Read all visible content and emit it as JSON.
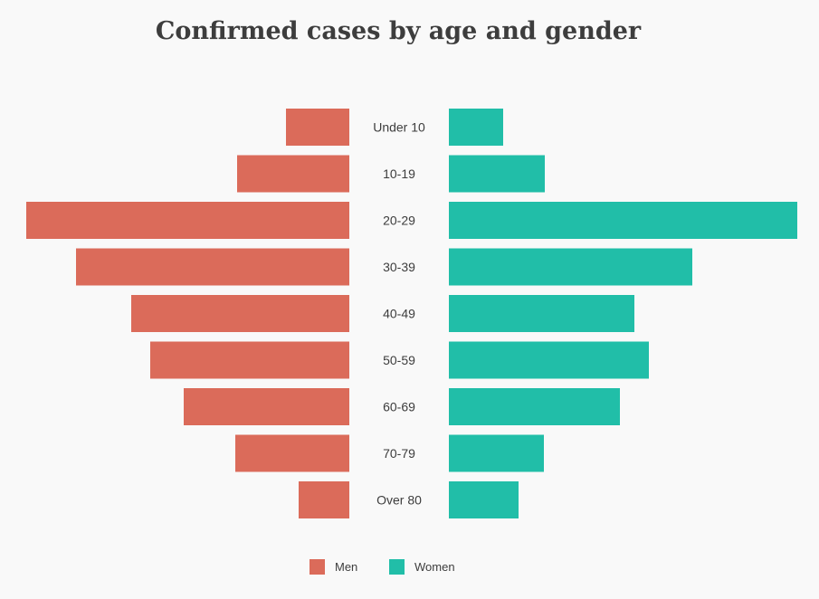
{
  "chart_data": {
    "type": "bar",
    "orientation": "horizontal",
    "layout": "population-pyramid",
    "title": "Confirmed cases by age and gender",
    "categories": [
      "Under 10",
      "10-19",
      "20-29",
      "30-39",
      "40-49",
      "50-59",
      "60-69",
      "70-79",
      "Over 80"
    ],
    "series": [
      {
        "name": "Men",
        "side": "left",
        "color": "#db6b5a",
        "values": [
          70,
          124,
          357,
          302,
          241,
          220,
          183,
          126,
          56
        ]
      },
      {
        "name": "Women",
        "side": "right",
        "color": "#21bea8",
        "values": [
          60,
          106,
          385,
          269,
          205,
          221,
          189,
          105,
          77
        ]
      }
    ],
    "xlim": [
      0,
      385
    ],
    "grid": false,
    "legend_position": "bottom-center"
  }
}
